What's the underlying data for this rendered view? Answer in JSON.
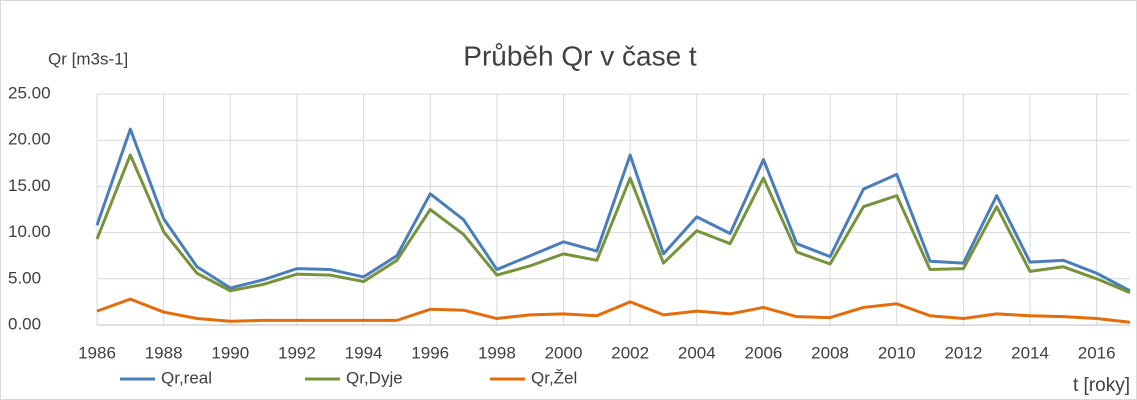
{
  "chart_data": {
    "type": "line",
    "title": "Průběh Qr v čase t",
    "y_label": "Qr [m3s-1]",
    "x_label": "t [roky]",
    "x": [
      1986,
      1987,
      1988,
      1989,
      1990,
      1991,
      1992,
      1993,
      1994,
      1995,
      1996,
      1997,
      1998,
      1999,
      2000,
      2001,
      2002,
      2003,
      2004,
      2005,
      2006,
      2007,
      2008,
      2009,
      2010,
      2011,
      2012,
      2013,
      2014,
      2015,
      2016,
      2017
    ],
    "series": [
      {
        "name": "Qr,real",
        "color": "#4a7ebb",
        "values": [
          10.8,
          21.2,
          11.5,
          6.3,
          4.0,
          4.9,
          6.1,
          6.0,
          5.2,
          7.5,
          14.2,
          11.4,
          6.0,
          7.5,
          9.0,
          8.0,
          18.4,
          7.7,
          11.7,
          9.9,
          17.9,
          8.8,
          7.4,
          14.7,
          16.3,
          6.9,
          6.7,
          14.0,
          6.8,
          7.0,
          5.6,
          3.7
        ]
      },
      {
        "name": "Qr,Dyje",
        "color": "#77933c",
        "values": [
          9.3,
          18.4,
          10.1,
          5.6,
          3.7,
          4.4,
          5.5,
          5.4,
          4.7,
          7.0,
          12.5,
          9.8,
          5.4,
          6.4,
          7.7,
          7.0,
          15.9,
          6.7,
          10.2,
          8.8,
          15.9,
          7.9,
          6.6,
          12.8,
          14.0,
          6.0,
          6.1,
          12.8,
          5.8,
          6.3,
          5.0,
          3.5
        ]
      },
      {
        "name": "Qr,Žel",
        "color": "#e46c0a",
        "values": [
          1.5,
          2.8,
          1.4,
          0.7,
          0.4,
          0.5,
          0.5,
          0.5,
          0.5,
          0.5,
          1.7,
          1.6,
          0.7,
          1.1,
          1.2,
          1.0,
          2.5,
          1.1,
          1.5,
          1.2,
          1.9,
          0.9,
          0.8,
          1.9,
          2.3,
          1.0,
          0.7,
          1.2,
          1.0,
          0.9,
          0.7,
          0.3
        ]
      }
    ],
    "xlim": [
      1986,
      2017
    ],
    "xticks": [
      1986,
      1988,
      1990,
      1992,
      1994,
      1996,
      1998,
      2000,
      2002,
      2004,
      2006,
      2008,
      2010,
      2012,
      2014,
      2016
    ],
    "ylim": [
      0,
      25
    ],
    "yticks": [
      {
        "value": 0,
        "label": "0.00"
      },
      {
        "value": 5,
        "label": "5.00"
      },
      {
        "value": 10,
        "label": "10.00"
      },
      {
        "value": 15,
        "label": "15.00"
      },
      {
        "value": 20,
        "label": "20.00"
      },
      {
        "value": 25,
        "label": "25.00"
      }
    ],
    "grid": true,
    "legend": "bottom"
  }
}
